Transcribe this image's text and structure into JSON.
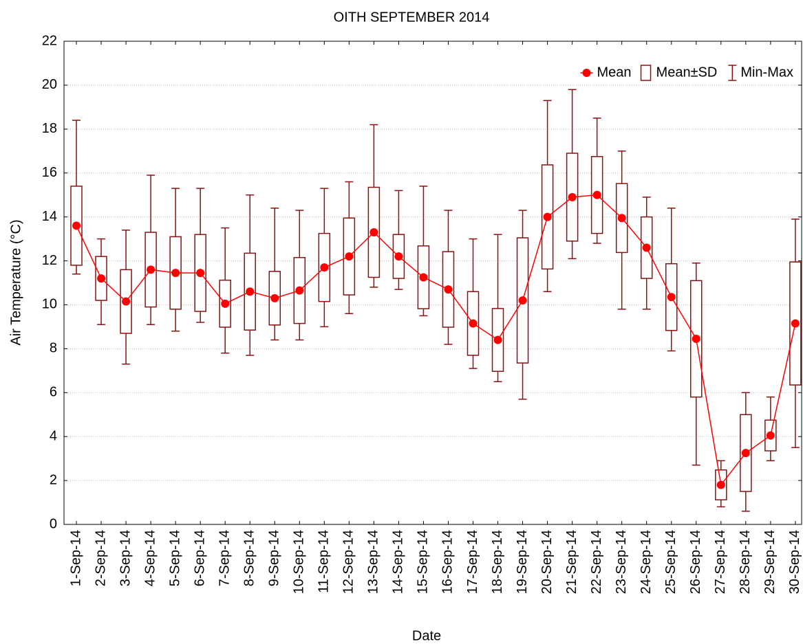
{
  "chart_data": {
    "type": "box",
    "title": "OITH SEPTEMBER 2014",
    "xlabel": "Date",
    "ylabel": "Air Temperature (°C)",
    "categories": [
      "1-Sep-14",
      "2-Sep-14",
      "3-Sep-14",
      "4-Sep-14",
      "5-Sep-14",
      "6-Sep-14",
      "7-Sep-14",
      "8-Sep-14",
      "9-Sep-14",
      "10-Sep-14",
      "11-Sep-14",
      "12-Sep-14",
      "13-Sep-14",
      "14-Sep-14",
      "15-Sep-14",
      "16-Sep-14",
      "17-Sep-14",
      "18-Sep-14",
      "19-Sep-14",
      "20-Sep-14",
      "21-Sep-14",
      "22-Sep-14",
      "23-Sep-14",
      "24-Sep-14",
      "25-Sep-14",
      "26-Sep-14",
      "27-Sep-14",
      "28-Sep-14",
      "29-Sep-14",
      "30-Sep-14"
    ],
    "series": [
      {
        "name": "Mean",
        "color": "#ff0000",
        "values": [
          13.6,
          11.2,
          10.15,
          11.6,
          11.45,
          11.45,
          10.05,
          10.6,
          10.3,
          10.65,
          11.7,
          12.2,
          13.3,
          12.2,
          11.25,
          10.7,
          9.15,
          8.4,
          10.2,
          14.0,
          14.9,
          15.0,
          13.95,
          12.6,
          10.35,
          8.45,
          1.8,
          3.25,
          4.05,
          9.15
        ]
      },
      {
        "name": "Mean±SD",
        "color": "#8b1010",
        "values": [
          1.8,
          1.0,
          1.45,
          1.7,
          1.65,
          1.75,
          1.07,
          1.75,
          1.22,
          1.5,
          1.55,
          1.75,
          2.05,
          1.0,
          1.43,
          1.72,
          1.45,
          1.43,
          2.85,
          2.37,
          2.0,
          1.75,
          1.57,
          1.4,
          1.52,
          2.65,
          0.68,
          1.75,
          0.7,
          2.8
        ]
      },
      {
        "name": "Min-Max",
        "color": "#8b1010",
        "low": [
          11.4,
          9.1,
          7.3,
          9.1,
          8.8,
          9.2,
          7.8,
          7.7,
          8.4,
          8.4,
          9.0,
          9.6,
          10.8,
          10.7,
          9.5,
          8.2,
          7.1,
          6.5,
          5.7,
          10.6,
          12.1,
          12.8,
          9.8,
          9.8,
          7.9,
          2.7,
          0.8,
          0.6,
          2.9,
          3.5
        ],
        "high": [
          18.4,
          13.0,
          13.4,
          15.9,
          15.3,
          15.3,
          13.5,
          15.0,
          14.4,
          14.3,
          15.3,
          15.6,
          18.2,
          15.2,
          15.4,
          14.3,
          13.0,
          13.2,
          14.3,
          19.3,
          19.8,
          18.5,
          17.0,
          14.9,
          14.4,
          11.9,
          2.9,
          6.0,
          5.8,
          13.9
        ]
      }
    ],
    "ylim": [
      0,
      22
    ],
    "yticks": [
      0,
      2,
      4,
      6,
      8,
      10,
      12,
      14,
      16,
      18,
      20,
      22
    ],
    "grid": true,
    "legend": "upper right"
  }
}
